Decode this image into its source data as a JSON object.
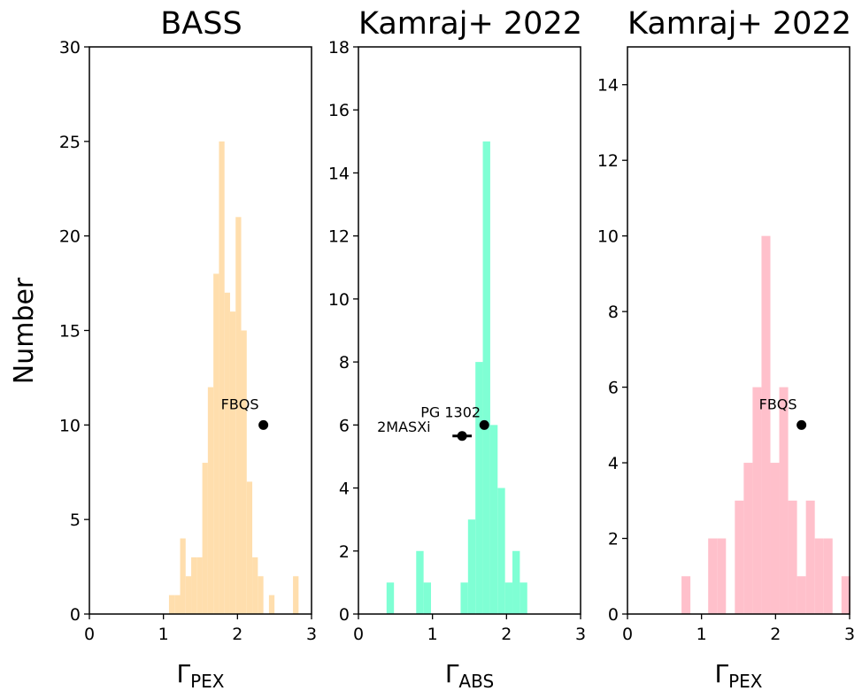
{
  "figure": {
    "ylabel": "Number"
  },
  "chart_data": [
    {
      "type": "bar",
      "title": "BASS",
      "xlabel": {
        "main": "Γ",
        "sub": "PEX"
      },
      "ylabel": "Number",
      "xlim": [
        0,
        3
      ],
      "ylim": [
        0,
        30
      ],
      "xticks": [
        "0",
        "1",
        "2",
        "3"
      ],
      "yticks": [
        "0",
        "5",
        "10",
        "15",
        "20",
        "25",
        "30"
      ],
      "ytick_values": [
        0,
        5,
        10,
        15,
        20,
        25,
        30
      ],
      "color": "#ffdead",
      "bin_width": 0.075,
      "bins": [
        {
          "x": 1.075,
          "y": 1
        },
        {
          "x": 1.15,
          "y": 1
        },
        {
          "x": 1.225,
          "y": 4
        },
        {
          "x": 1.3,
          "y": 2
        },
        {
          "x": 1.375,
          "y": 3
        },
        {
          "x": 1.45,
          "y": 3
        },
        {
          "x": 1.525,
          "y": 8
        },
        {
          "x": 1.6,
          "y": 12
        },
        {
          "x": 1.675,
          "y": 18
        },
        {
          "x": 1.75,
          "y": 25
        },
        {
          "x": 1.825,
          "y": 17
        },
        {
          "x": 1.9,
          "y": 16
        },
        {
          "x": 1.975,
          "y": 21
        },
        {
          "x": 2.05,
          "y": 15
        },
        {
          "x": 2.125,
          "y": 7
        },
        {
          "x": 2.2,
          "y": 3
        },
        {
          "x": 2.275,
          "y": 2
        },
        {
          "x": 2.425,
          "y": 1
        },
        {
          "x": 2.75,
          "y": 2
        }
      ],
      "points": [
        {
          "label": "FBQS",
          "x": 2.35,
          "y": 10,
          "xerr": 0
        }
      ]
    },
    {
      "type": "bar",
      "title": "Kamraj+ 2022",
      "xlabel": {
        "main": "Γ",
        "sub": "ABS"
      },
      "xlim": [
        0,
        3
      ],
      "ylim": [
        0,
        18
      ],
      "xticks": [
        "0",
        "1",
        "2",
        "3"
      ],
      "yticks": [
        "0",
        "2",
        "4",
        "6",
        "8",
        "10",
        "12",
        "14",
        "16",
        "18"
      ],
      "ytick_values": [
        0,
        2,
        4,
        6,
        8,
        10,
        12,
        14,
        16,
        18
      ],
      "color": "#7fffd4",
      "bin_width": 0.1,
      "bins": [
        {
          "x": 0.38,
          "y": 1
        },
        {
          "x": 0.78,
          "y": 2
        },
        {
          "x": 0.88,
          "y": 1
        },
        {
          "x": 1.38,
          "y": 1
        },
        {
          "x": 1.48,
          "y": 3
        },
        {
          "x": 1.58,
          "y": 8
        },
        {
          "x": 1.68,
          "y": 15
        },
        {
          "x": 1.78,
          "y": 6
        },
        {
          "x": 1.88,
          "y": 4
        },
        {
          "x": 1.98,
          "y": 1
        },
        {
          "x": 2.08,
          "y": 2
        },
        {
          "x": 2.18,
          "y": 1
        }
      ],
      "points": [
        {
          "label": "PG 1302",
          "x": 1.7,
          "y": 6,
          "xerr": 0
        },
        {
          "label": "2MASXi",
          "x": 1.4,
          "y": 5.65,
          "xerr": 0.13
        }
      ]
    },
    {
      "type": "bar",
      "title": "Kamraj+ 2022",
      "xlabel": {
        "main": "Γ",
        "sub": "PEX"
      },
      "xlim": [
        0,
        3
      ],
      "ylim": [
        0,
        15
      ],
      "xticks": [
        "0",
        "1",
        "2",
        "3"
      ],
      "yticks": [
        "0",
        "2",
        "4",
        "6",
        "8",
        "10",
        "12",
        "14"
      ],
      "ytick_values": [
        0,
        2,
        4,
        6,
        8,
        10,
        12,
        14
      ],
      "color": "#ffc0cb",
      "bin_width": 0.12,
      "bins": [
        {
          "x": 0.73,
          "y": 1
        },
        {
          "x": 1.09,
          "y": 2
        },
        {
          "x": 1.21,
          "y": 2
        },
        {
          "x": 1.45,
          "y": 3
        },
        {
          "x": 1.57,
          "y": 4
        },
        {
          "x": 1.69,
          "y": 6
        },
        {
          "x": 1.81,
          "y": 10
        },
        {
          "x": 1.93,
          "y": 4
        },
        {
          "x": 2.05,
          "y": 6
        },
        {
          "x": 2.17,
          "y": 3
        },
        {
          "x": 2.29,
          "y": 1
        },
        {
          "x": 2.41,
          "y": 3
        },
        {
          "x": 2.53,
          "y": 2
        },
        {
          "x": 2.65,
          "y": 2
        },
        {
          "x": 2.89,
          "y": 1
        }
      ],
      "points": [
        {
          "label": "FBQS",
          "x": 2.35,
          "y": 5,
          "xerr": 0
        }
      ]
    }
  ]
}
